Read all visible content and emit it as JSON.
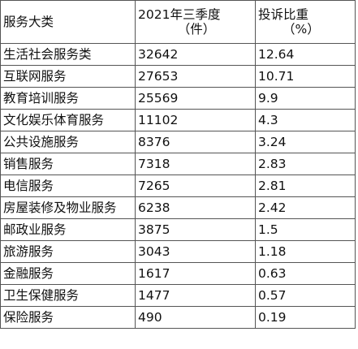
{
  "headers": {
    "category": "服务大类",
    "q3_line1": "2021年三季度",
    "q3_line2": "（件）",
    "ratio_line1": "投诉比重",
    "ratio_line2": "（%）"
  },
  "rows": [
    {
      "category": "生活社会服务类",
      "count": "32642",
      "ratio": "12.64"
    },
    {
      "category": "互联网服务",
      "count": "27653",
      "ratio": "10.71"
    },
    {
      "category": "教育培训服务",
      "count": "25569",
      "ratio": "9.9"
    },
    {
      "category": "文化娱乐体育服务",
      "count": "11102",
      "ratio": "4.3"
    },
    {
      "category": "公共设施服务",
      "count": "8376",
      "ratio": "3.24"
    },
    {
      "category": "销售服务",
      "count": "7318",
      "ratio": "2.83"
    },
    {
      "category": "电信服务",
      "count": "7265",
      "ratio": "2.81"
    },
    {
      "category": "房屋装修及物业服务",
      "count": "6238",
      "ratio": "2.42"
    },
    {
      "category": "邮政业服务",
      "count": "3875",
      "ratio": "1.5"
    },
    {
      "category": "旅游服务",
      "count": "3043",
      "ratio": "1.18"
    },
    {
      "category": "金融服务",
      "count": "1617",
      "ratio": "0.63"
    },
    {
      "category": "卫生保健服务",
      "count": "1477",
      "ratio": "0.57"
    },
    {
      "category": "保险服务",
      "count": "490",
      "ratio": "0.19"
    }
  ]
}
